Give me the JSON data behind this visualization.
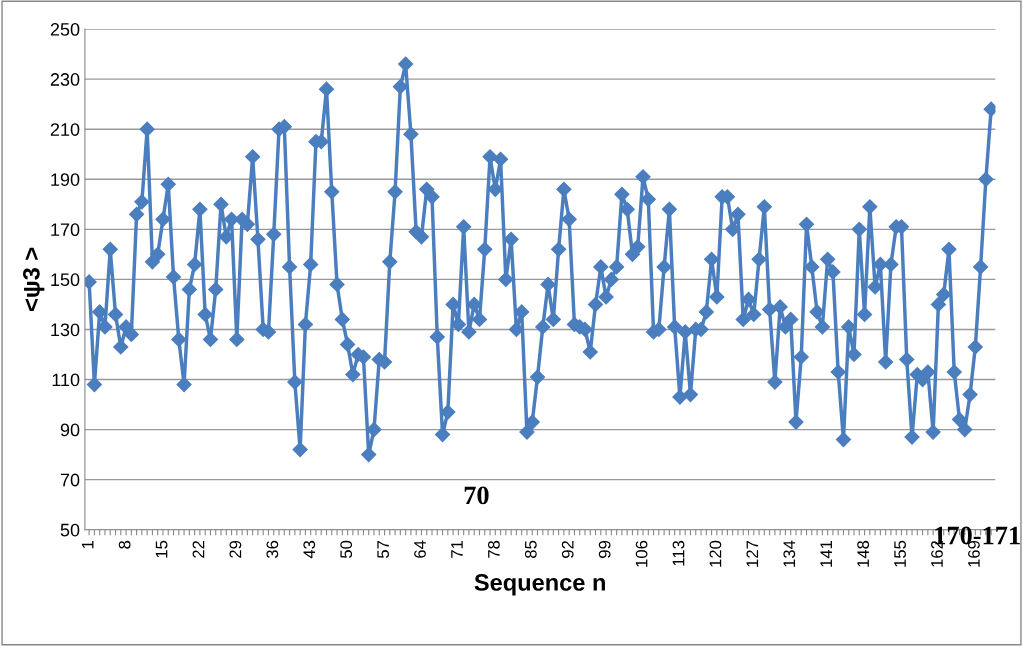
{
  "chart_data": {
    "type": "line",
    "xlabel": "Sequence n",
    "ylabel": "<ψ3 >",
    "categories": [
      "1",
      null,
      null,
      null,
      null,
      null,
      null,
      "8",
      null,
      null,
      null,
      null,
      null,
      null,
      "15",
      null,
      null,
      null,
      null,
      null,
      null,
      "22",
      null,
      null,
      null,
      null,
      null,
      null,
      "29",
      null,
      null,
      null,
      null,
      null,
      null,
      "36",
      null,
      null,
      null,
      null,
      null,
      null,
      "43",
      null,
      null,
      null,
      null,
      null,
      null,
      "50",
      null,
      null,
      null,
      null,
      null,
      null,
      "57",
      null,
      null,
      null,
      null,
      null,
      null,
      "64",
      null,
      null,
      null,
      null,
      null,
      null,
      "71",
      null,
      null,
      null,
      null,
      null,
      null,
      "78",
      null,
      null,
      null,
      null,
      null,
      null,
      "85",
      null,
      null,
      null,
      null,
      null,
      null,
      "92",
      null,
      null,
      null,
      null,
      null,
      null,
      "99",
      null,
      null,
      null,
      null,
      null,
      null,
      "106",
      null,
      null,
      null,
      null,
      null,
      null,
      "113",
      null,
      null,
      null,
      null,
      null,
      null,
      "120",
      null,
      null,
      null,
      null,
      null,
      null,
      "127",
      null,
      null,
      null,
      null,
      null,
      null,
      "134",
      null,
      null,
      null,
      null,
      null,
      null,
      "141",
      null,
      null,
      null,
      null,
      null,
      null,
      "148",
      null,
      null,
      null,
      null,
      null,
      null,
      "155",
      null,
      null,
      null,
      null,
      null,
      null,
      "162",
      null,
      null,
      null,
      null,
      null,
      null,
      "169",
      null,
      null,
      null
    ],
    "series": [
      {
        "color": "#4a7ebf",
        "values": [
          149,
          108,
          137,
          131,
          162,
          136,
          123,
          131,
          128,
          176,
          181,
          210,
          157,
          160,
          174,
          188,
          151,
          126,
          108,
          146,
          156,
          178,
          136,
          126,
          146,
          180,
          167,
          174,
          126,
          174,
          172,
          199,
          166,
          130,
          129,
          168,
          210,
          211,
          155,
          109,
          82,
          132,
          156,
          205,
          205,
          226,
          185,
          148,
          134,
          124,
          112,
          120,
          119,
          80,
          90,
          118,
          117,
          157,
          185,
          227,
          236,
          208,
          169,
          167,
          186,
          183,
          127,
          88,
          97,
          140,
          132,
          171,
          129,
          140,
          134,
          162,
          199,
          186,
          198,
          150,
          166,
          130,
          137,
          89,
          93,
          111,
          131,
          148,
          134,
          162,
          186,
          174,
          132,
          131,
          130,
          121,
          140,
          155,
          143,
          150,
          155,
          184,
          178,
          160,
          163,
          191,
          182,
          129,
          130,
          155,
          178,
          131,
          103,
          129,
          104,
          130,
          130,
          137,
          158,
          143,
          183,
          183,
          170,
          176,
          134,
          142,
          136,
          158,
          179,
          138,
          109,
          139,
          131,
          134,
          93,
          119,
          172,
          155,
          137,
          131,
          158,
          153,
          113,
          86,
          131,
          120,
          170,
          136,
          179,
          147,
          156,
          117,
          156,
          171,
          171,
          118,
          87,
          112,
          110,
          113,
          89,
          140,
          144,
          162,
          113,
          94,
          90,
          104,
          123,
          155,
          190,
          218
        ]
      }
    ],
    "ylim": [
      50,
      250
    ],
    "yticks": [
      50,
      70,
      90,
      110,
      130,
      150,
      170,
      190,
      210,
      230,
      250
    ],
    "grid": "y",
    "marker": "diamond",
    "line_style": "solid",
    "legend": false,
    "annotations": [
      "70",
      "170-171"
    ]
  }
}
